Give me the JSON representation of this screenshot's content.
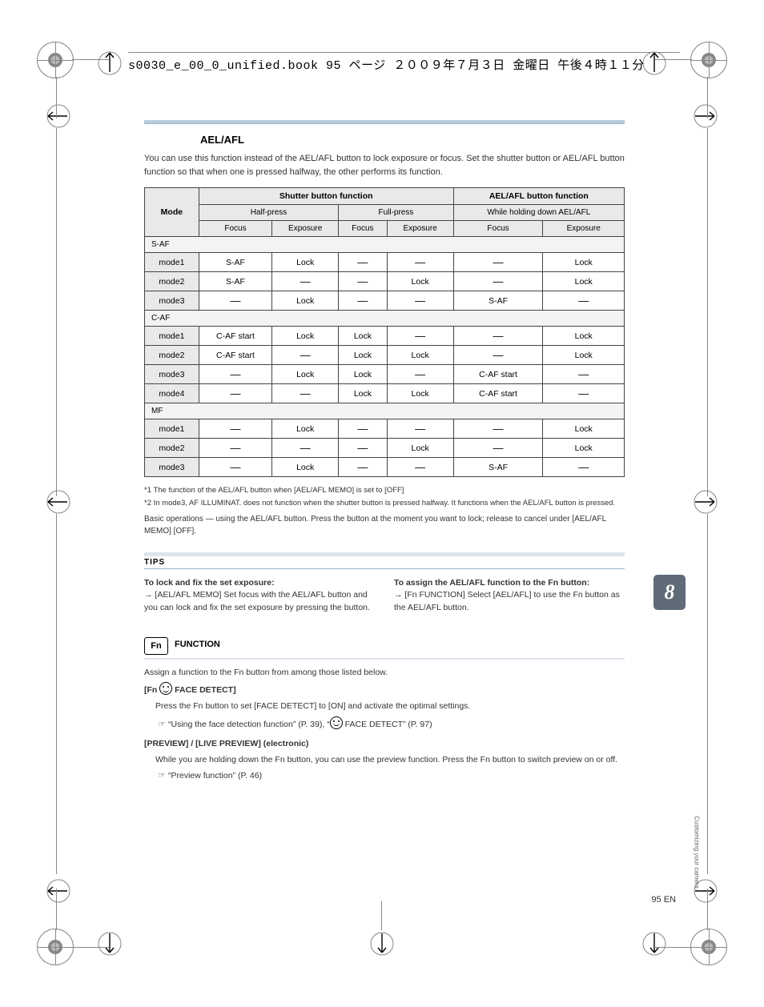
{
  "header_line": "s0030_e_00_0_unified.book  95 ページ  ２００９年７月３日  金曜日  午後４時１１分",
  "section1": {
    "title": "AEL/AFL",
    "intro": "You can use this function instead of the AEL/AFL button to lock exposure or focus. Set the shutter button or AEL/AFL button function so that when one is pressed halfway, the other performs its function."
  },
  "table": {
    "top_left": "Mode",
    "shutter_header": "Shutter button function",
    "ael_header": "AEL/AFL button function",
    "sub_shutter1": "Half-press",
    "sub_shutter2": "Full-press",
    "sub_ael": "While holding down AEL/AFL",
    "colhead": [
      "Focus",
      "Exposure",
      "Focus",
      "Exposure",
      "Focus",
      "Exposure"
    ],
    "groups": [
      {
        "name": "S-AF",
        "rows": [
          {
            "mode": "mode1",
            "cells": [
              "S-AF",
              "Lock",
              "—",
              "—",
              "—",
              "Lock"
            ]
          },
          {
            "mode": "mode2",
            "cells": [
              "S-AF",
              "—",
              "—",
              "Lock",
              "—",
              "Lock"
            ]
          },
          {
            "mode": "mode3",
            "cells": [
              "—",
              "Lock",
              "—",
              "—",
              "S-AF",
              "—"
            ]
          }
        ]
      },
      {
        "name": "C-AF",
        "rows": [
          {
            "mode": "mode1",
            "cells": [
              "C-AF start",
              "Lock",
              "Lock",
              "—",
              "—",
              "Lock"
            ]
          },
          {
            "mode": "mode2",
            "cells": [
              "C-AF start",
              "—",
              "Lock",
              "Lock",
              "—",
              "Lock"
            ]
          },
          {
            "mode": "mode3",
            "cells": [
              "—",
              "Lock",
              "Lock",
              "—",
              "C-AF start",
              "—"
            ]
          },
          {
            "mode": "mode4",
            "cells": [
              "—",
              "—",
              "Lock",
              "Lock",
              "C-AF start",
              "—"
            ]
          }
        ]
      },
      {
        "name": "MF",
        "rows": [
          {
            "mode": "mode1",
            "cells": [
              "—",
              "Lock",
              "—",
              "—",
              "—",
              "Lock"
            ]
          },
          {
            "mode": "mode2",
            "cells": [
              "—",
              "—",
              "—",
              "Lock",
              "—",
              "Lock"
            ]
          },
          {
            "mode": "mode3",
            "cells": [
              "—",
              "Lock",
              "—",
              "—",
              "S-AF",
              "—"
            ]
          }
        ]
      }
    ],
    "footnotes": [
      "*1  The function of the AEL/AFL button when [AEL/AFL MEMO] is set to [OFF]",
      "*2  In mode3, AF ILLUMINAT. does not function when the shutter button is pressed halfway. It functions when the AEL/AFL button is pressed."
    ],
    "underline_note": "Basic operations — using the AEL/AFL button. Press the button at the moment you want to lock; release to cancel under [AEL/AFL MEMO] [OFF]."
  },
  "tips": {
    "heading": "TIPS",
    "left_title": "To lock and fix the set exposure:",
    "left_body": "→ [AEL/AFL MEMO]  Set focus with the AEL/AFL button and you can lock and fix the set exposure by pressing the button.",
    "right_title": "To assign the AEL/AFL function to the Fn button:",
    "right_body": "→ [Fn FUNCTION]  Select [AEL/AFL] to use the Fn button as the AEL/AFL button."
  },
  "fn_section": {
    "icon": "Fn",
    "title": "FUNCTION",
    "intro": "Assign a function to the Fn button from among those listed below.",
    "items": [
      {
        "label": "[Fn FACE DETECT]",
        "body": "Press the Fn button to set [FACE DETECT] to [ON] and activate the optimal settings.",
        "ref": "☞ “Using the face detection function” (P. 39), “FACE DETECT” (P. 97)"
      },
      {
        "label": "[PREVIEW] / [LIVE PREVIEW] (electronic)",
        "body": "While you are holding down the Fn button, you can use the preview function. Press the Fn button to switch preview on or off.",
        "ref": "☞ “Preview function” (P. 46)"
      }
    ]
  },
  "chapter_tab": "8",
  "chapter_side_label": "Customizing your camera",
  "page_label": "95 EN"
}
